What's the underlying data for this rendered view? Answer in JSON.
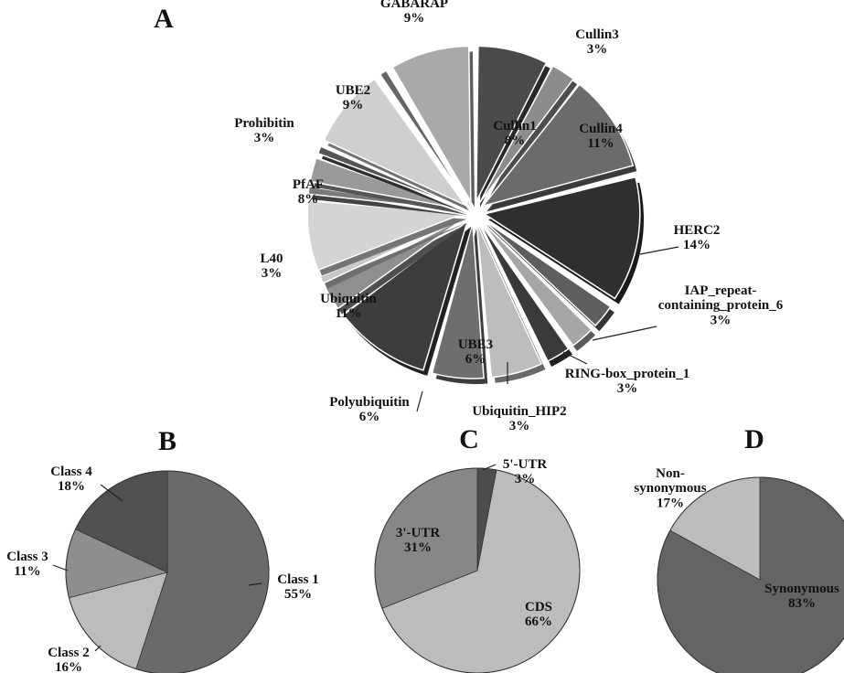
{
  "chart_data": [
    {
      "type": "pie",
      "panel": "A",
      "exploded": true,
      "slices": [
        {
          "label": "Cullin1",
          "pct_label": "8%",
          "value": 8,
          "color": "#4a4a4a"
        },
        {
          "label": "Cullin3",
          "pct_label": "3%",
          "value": 3,
          "color": "#8c8c8c"
        },
        {
          "label": "Cullin4",
          "pct_label": "11%",
          "value": 11,
          "color": "#6b6b6b"
        },
        {
          "label": "HERC2",
          "pct_label": "14%",
          "value": 14,
          "color": "#2f2f2f"
        },
        {
          "label": "IAP_repeat-containing_protein_6",
          "pct_label": "3%",
          "value": 3,
          "color": "#5e5e5e"
        },
        {
          "label": "RING-box_protein_1",
          "pct_label": "3%",
          "value": 3,
          "color": "#a6a6a6"
        },
        {
          "label": "Ubiquitin_HIP2",
          "pct_label": "3%",
          "value": 3,
          "color": "#3a3a3a"
        },
        {
          "label": "UBE3",
          "pct_label": "6%",
          "value": 6,
          "color": "#bdbdbd"
        },
        {
          "label": "Polyubiquitin",
          "pct_label": "6%",
          "value": 6,
          "color": "#6e6e6e"
        },
        {
          "label": "Ubiquitin",
          "pct_label": "11%",
          "value": 11,
          "color": "#3d3d3d"
        },
        {
          "label": "L40",
          "pct_label": "3%",
          "value": 3,
          "color": "#8f8f8f"
        },
        {
          "label": "",
          "pct_label": "",
          "value": 1.2,
          "color": "#c8c8c8"
        },
        {
          "label": "PfAF",
          "pct_label": "8%",
          "value": 8,
          "color": "#d4d4d4"
        },
        {
          "label": "",
          "pct_label": "",
          "value": 1.2,
          "color": "#7a7a7a"
        },
        {
          "label": "Prohibitin",
          "pct_label": "3%",
          "value": 3,
          "color": "#9a9a9a"
        },
        {
          "label": "",
          "pct_label": "",
          "value": 1.2,
          "color": "#555555"
        },
        {
          "label": "UBE2",
          "pct_label": "9%",
          "value": 9,
          "color": "#cfcfcf"
        },
        {
          "label": "",
          "pct_label": "",
          "value": 1.2,
          "color": "#666666"
        },
        {
          "label": "GABARAP",
          "pct_label": "9%",
          "value": 9,
          "color": "#a9a9a9"
        }
      ]
    },
    {
      "type": "pie",
      "panel": "B",
      "slices": [
        {
          "label": "Class 1",
          "pct_label": "55%",
          "value": 55,
          "color": "#6a6a6a"
        },
        {
          "label": "Class 2",
          "pct_label": "16%",
          "value": 16,
          "color": "#bcbcbc"
        },
        {
          "label": "Class 3",
          "pct_label": "11%",
          "value": 11,
          "color": "#8e8e8e"
        },
        {
          "label": "Class 4",
          "pct_label": "18%",
          "value": 18,
          "color": "#505050"
        }
      ]
    },
    {
      "type": "pie",
      "panel": "C",
      "slices": [
        {
          "label": "5'-UTR",
          "pct_label": "3%",
          "value": 3,
          "color": "#4d4d4d"
        },
        {
          "label": "CDS",
          "pct_label": "66%",
          "value": 66,
          "color": "#bcbcbc"
        },
        {
          "label": "3'-UTR",
          "pct_label": "31%",
          "value": 31,
          "color": "#878787"
        }
      ]
    },
    {
      "type": "pie",
      "panel": "D",
      "slices": [
        {
          "label": "Synonymous",
          "pct_label": "83%",
          "value": 83,
          "color": "#646464"
        },
        {
          "label": "Non-synonymous",
          "pct_label": "17%",
          "value": 17,
          "color": "#bcbcbc"
        }
      ]
    }
  ]
}
